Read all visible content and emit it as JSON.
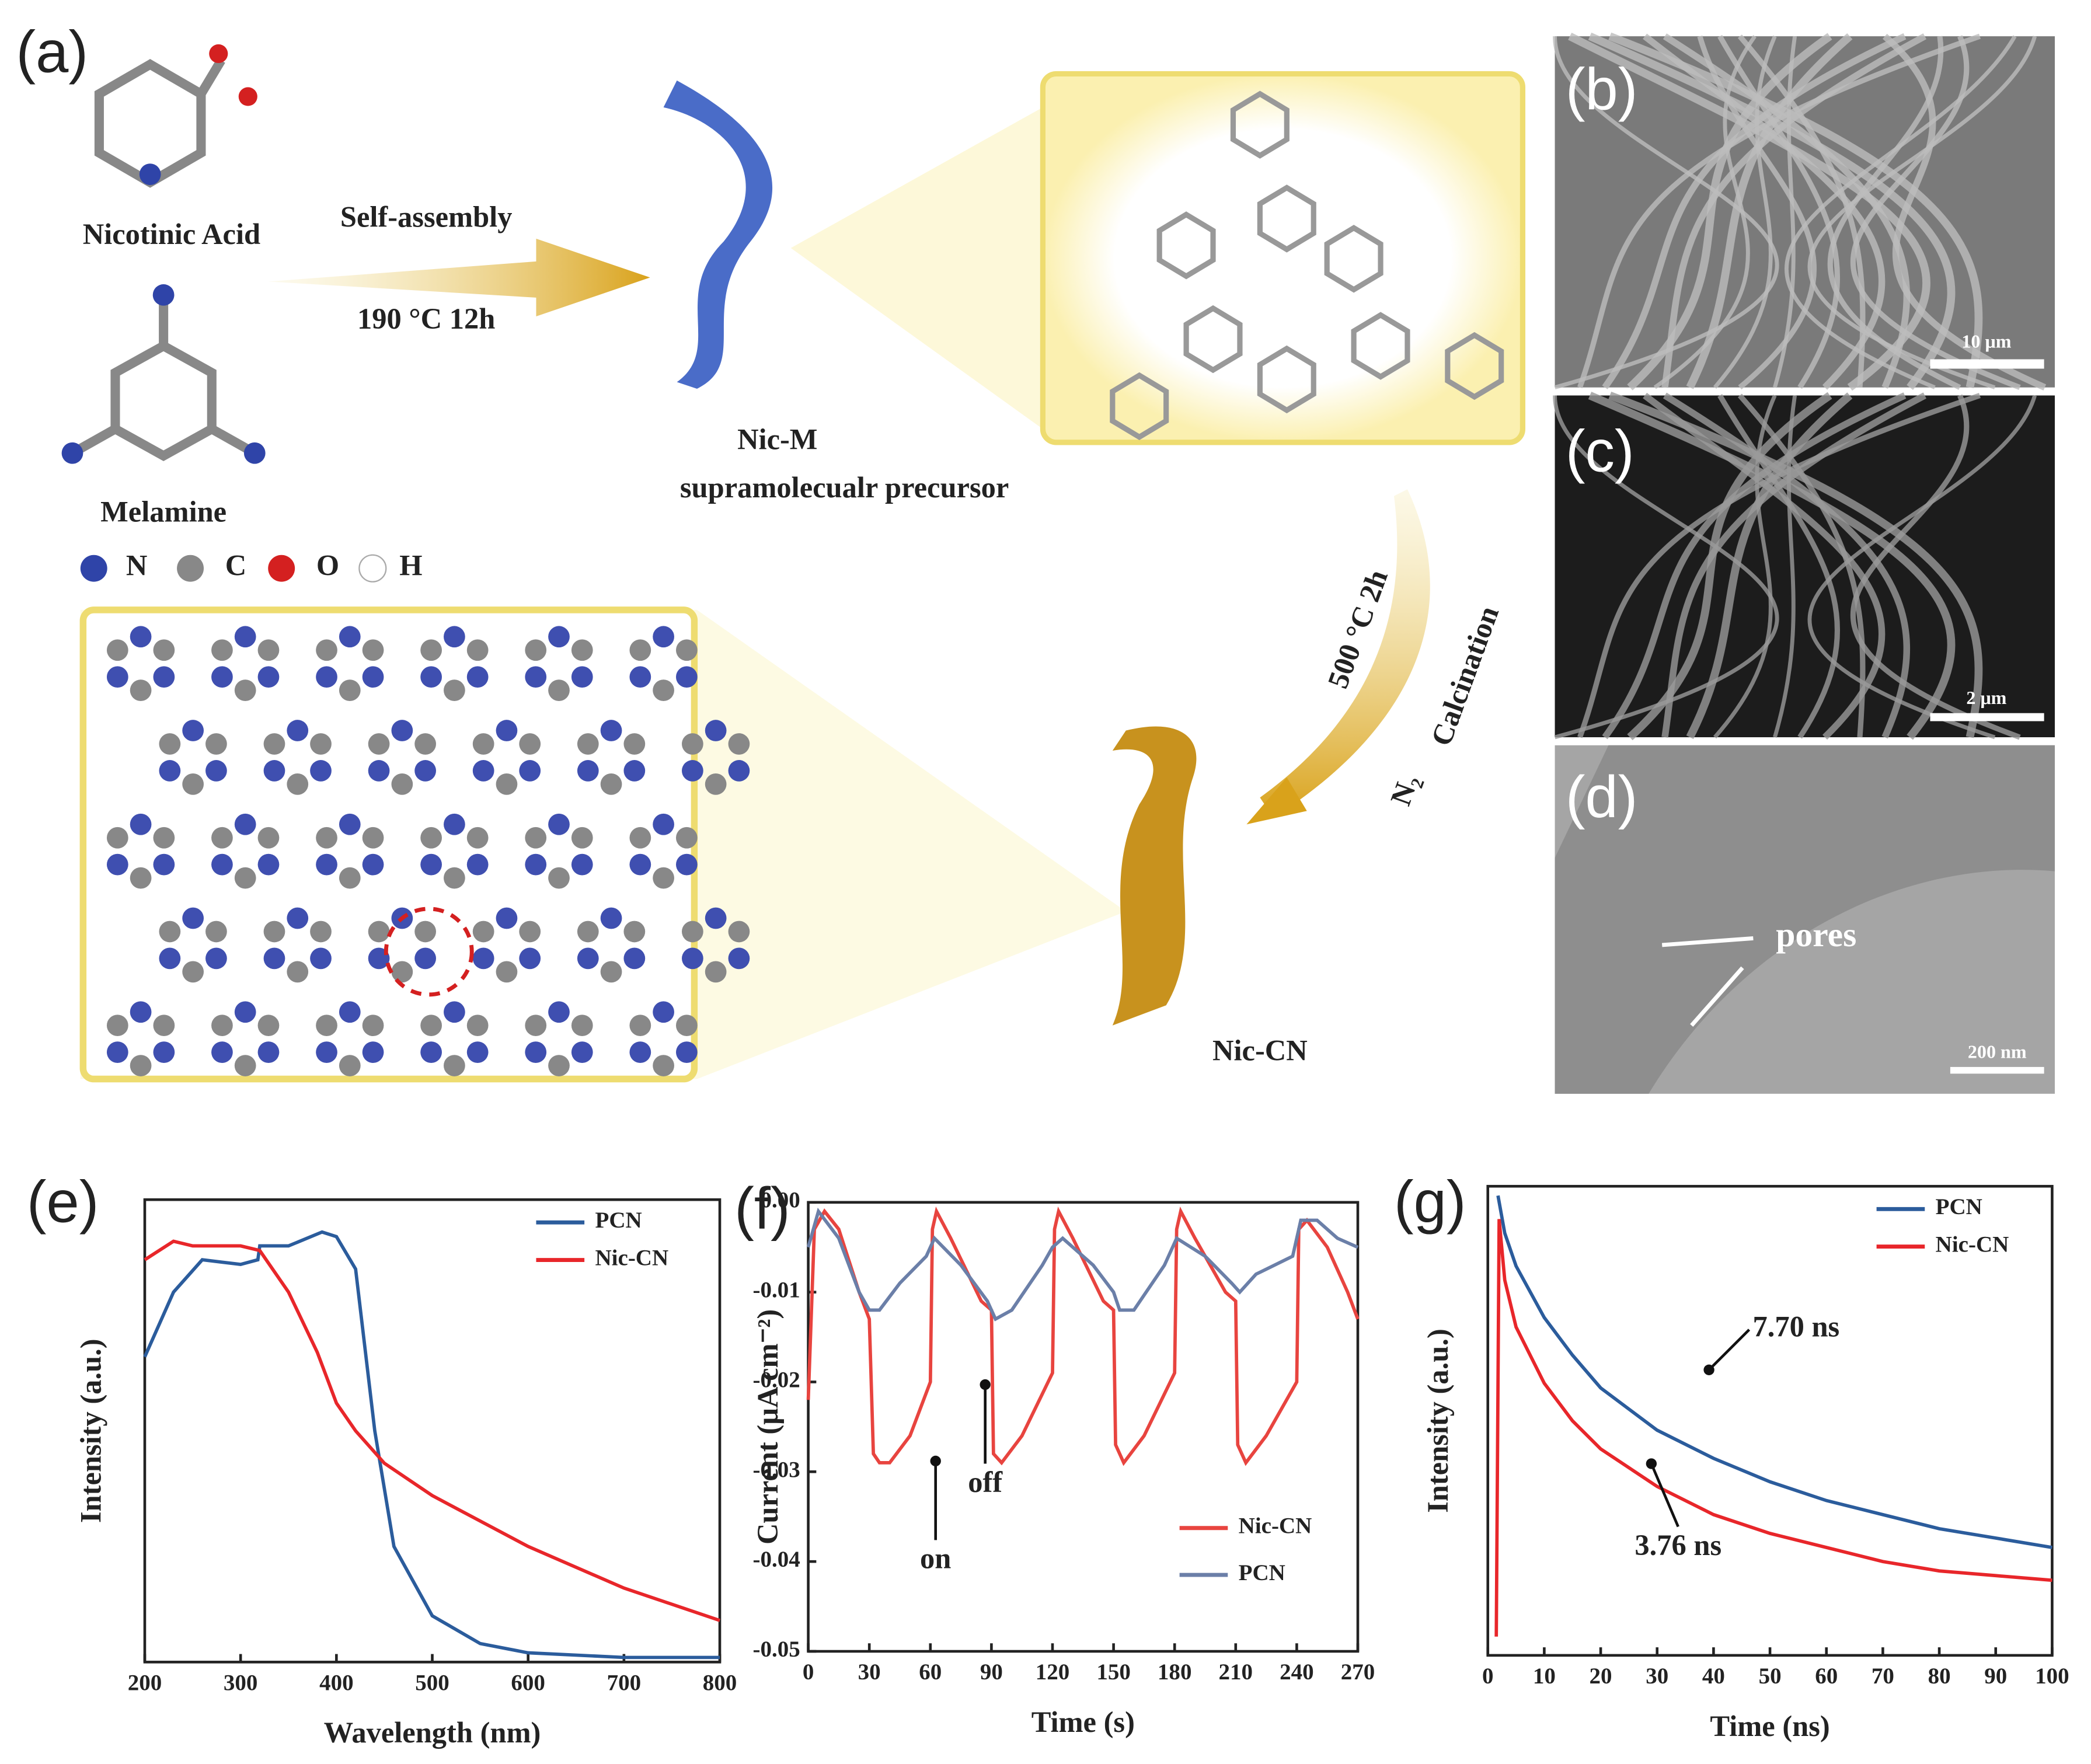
{
  "figure": {
    "panel_a": {
      "label": "(a)",
      "nicotinic_acid": "Nicotinic Acid",
      "melamine": "Melamine",
      "step1_top": "Self-assembly",
      "step1_bottom": "190 °C  12h",
      "precursor_name": "Nic-M",
      "precursor_desc": "supramolecualr precursor",
      "atoms": [
        "N",
        "C",
        "O",
        "H"
      ],
      "step2_top": "500 °C 2h",
      "step2_mid": "Calcination",
      "step2_gas": "N₂",
      "product": "Nic-CN"
    },
    "panel_b": {
      "label": "(b)",
      "scale": "10 μm"
    },
    "panel_c": {
      "label": "(c)",
      "scale": "2 μm"
    },
    "panel_d": {
      "label": "(d)",
      "annotation": "pores",
      "scale": "200 nm"
    }
  },
  "chart_data": [
    {
      "type": "line",
      "panel": "(e)",
      "xlabel": "Wavelength (nm)",
      "ylabel": "Intensity (a.u.)",
      "xlim": [
        200,
        800
      ],
      "xticks": [
        200,
        300,
        400,
        500,
        600,
        700,
        800
      ],
      "ylim": [
        0,
        1
      ],
      "legend": "upper right",
      "series": [
        {
          "name": "PCN",
          "color": "#2b5c9c",
          "x": [
            200,
            230,
            260,
            300,
            318,
            320,
            350,
            385,
            400,
            420,
            440,
            460,
            500,
            550,
            600,
            700,
            800
          ],
          "values": [
            0.66,
            0.8,
            0.87,
            0.86,
            0.87,
            0.9,
            0.9,
            0.93,
            0.92,
            0.85,
            0.5,
            0.25,
            0.1,
            0.04,
            0.02,
            0.01,
            0.01
          ]
        },
        {
          "name": "Nic-CN",
          "color": "#e8262a",
          "x": [
            200,
            230,
            250,
            300,
            320,
            350,
            380,
            400,
            420,
            450,
            500,
            600,
            700,
            800
          ],
          "values": [
            0.87,
            0.91,
            0.9,
            0.9,
            0.89,
            0.8,
            0.67,
            0.56,
            0.5,
            0.43,
            0.36,
            0.25,
            0.16,
            0.09
          ]
        }
      ]
    },
    {
      "type": "line",
      "panel": "(f)",
      "xlabel": "Time (s)",
      "ylabel": "Current (μA cm⁻²)",
      "xlim": [
        0,
        270
      ],
      "xticks": [
        0,
        30,
        60,
        90,
        120,
        150,
        180,
        210,
        240,
        270
      ],
      "ylim": [
        -0.05,
        0
      ],
      "yticks": [
        {
          "value": 0,
          "label": "0.00"
        },
        {
          "value": -0.01,
          "label": "-0.01"
        },
        {
          "value": -0.02,
          "label": "-0.02"
        },
        {
          "value": -0.03,
          "label": "-0.03"
        },
        {
          "value": -0.04,
          "label": "-0.04"
        },
        {
          "value": -0.05,
          "label": "-0.05"
        }
      ],
      "legend": "lower right",
      "annotations": [
        "on",
        "off"
      ],
      "series": [
        {
          "name": "Nic-CN",
          "color": "#e8443f",
          "x": [
            0,
            3,
            8,
            15,
            25,
            30,
            32,
            35,
            40,
            50,
            60,
            61,
            63,
            70,
            85,
            90,
            91,
            95,
            105,
            120,
            121,
            123,
            130,
            145,
            150,
            151,
            155,
            165,
            180,
            181,
            183,
            190,
            205,
            210,
            211,
            215,
            225,
            240,
            241,
            245,
            255,
            265,
            270
          ],
          "values": [
            -0.022,
            -0.003,
            -0.001,
            -0.003,
            -0.01,
            -0.013,
            -0.028,
            -0.029,
            -0.029,
            -0.026,
            -0.02,
            -0.003,
            -0.001,
            -0.004,
            -0.011,
            -0.012,
            -0.028,
            -0.029,
            -0.026,
            -0.019,
            -0.003,
            -0.001,
            -0.004,
            -0.011,
            -0.012,
            -0.027,
            -0.029,
            -0.026,
            -0.019,
            -0.003,
            -0.001,
            -0.004,
            -0.01,
            -0.011,
            -0.027,
            -0.029,
            -0.026,
            -0.02,
            -0.003,
            -0.002,
            -0.005,
            -0.01,
            -0.013
          ]
        },
        {
          "name": "PCN",
          "color": "#6b7fa8",
          "x": [
            0,
            5,
            15,
            25,
            30,
            35,
            45,
            58,
            60,
            62,
            75,
            88,
            92,
            100,
            115,
            120,
            125,
            140,
            150,
            153,
            160,
            175,
            181,
            195,
            208,
            212,
            220,
            238,
            242,
            250,
            260,
            270
          ],
          "values": [
            -0.005,
            -0.001,
            -0.004,
            -0.01,
            -0.012,
            -0.012,
            -0.009,
            -0.006,
            -0.005,
            -0.004,
            -0.007,
            -0.011,
            -0.013,
            -0.012,
            -0.007,
            -0.005,
            -0.004,
            -0.007,
            -0.01,
            -0.012,
            -0.012,
            -0.007,
            -0.004,
            -0.006,
            -0.009,
            -0.01,
            -0.008,
            -0.006,
            -0.002,
            -0.002,
            -0.004,
            -0.005
          ]
        }
      ]
    },
    {
      "type": "line",
      "panel": "(g)",
      "xlabel": "Time (ns)",
      "ylabel": "Intensity (a.u.)",
      "xlim": [
        0,
        100
      ],
      "xticks": [
        0,
        10,
        20,
        30,
        40,
        50,
        60,
        70,
        80,
        90,
        100
      ],
      "ylim": [
        0,
        1
      ],
      "legend": "upper right",
      "annotations": [
        "7.70 ns",
        "3.76 ns"
      ],
      "series": [
        {
          "name": "PCN",
          "color": "#2b5c9c",
          "x": [
            1.8,
            3,
            5,
            10,
            15,
            20,
            30,
            40,
            50,
            60,
            70,
            80,
            90,
            100
          ],
          "values": [
            0.98,
            0.9,
            0.83,
            0.72,
            0.64,
            0.57,
            0.48,
            0.42,
            0.37,
            0.33,
            0.3,
            0.27,
            0.25,
            0.23
          ]
        },
        {
          "name": "Nic-CN",
          "color": "#e8262a",
          "x": [
            1.5,
            2,
            3,
            5,
            10,
            15,
            20,
            30,
            40,
            50,
            60,
            70,
            80,
            90,
            100
          ],
          "values": [
            0.04,
            0.93,
            0.8,
            0.7,
            0.58,
            0.5,
            0.44,
            0.36,
            0.3,
            0.26,
            0.23,
            0.2,
            0.18,
            0.17,
            0.16
          ]
        }
      ]
    }
  ]
}
